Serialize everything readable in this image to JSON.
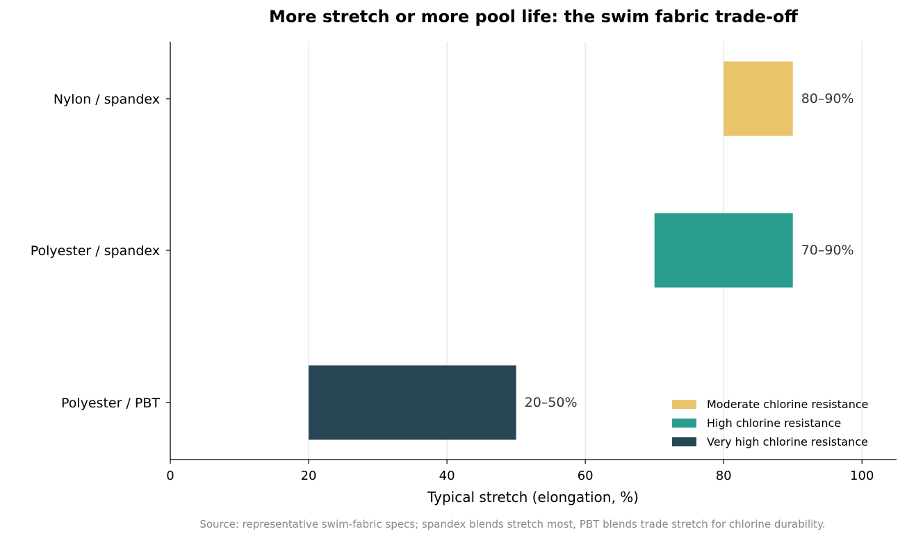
{
  "chart_data": {
    "type": "bar",
    "orientation": "horizontal-range",
    "title": "More stretch or more pool life: the swim fabric trade-off",
    "xlabel": "Typical stretch (elongation, %)",
    "ylabel": "",
    "xlim": [
      0,
      105
    ],
    "xticks": [
      0,
      20,
      40,
      60,
      80,
      100
    ],
    "grid": "vertical",
    "legend_position": "bottom-right",
    "categories": [
      "Nylon / spandex",
      "Polyester / spandex",
      "Polyester / PBT"
    ],
    "series": [
      {
        "category": "Nylon / spandex",
        "start": 80,
        "end": 90,
        "label": "80–90%",
        "color": "#E9C46A",
        "legend": "Moderate chlorine resistance"
      },
      {
        "category": "Polyester / spandex",
        "start": 70,
        "end": 90,
        "label": "70–90%",
        "color": "#2A9D8F",
        "legend": "High chlorine resistance"
      },
      {
        "category": "Polyester / PBT",
        "start": 20,
        "end": 50,
        "label": "20–50%",
        "color": "#264653",
        "legend": "Very high chlorine resistance"
      }
    ],
    "footnote": "Source: representative swim-fabric specs; spandex blends stretch most, PBT blends trade stretch for chlorine durability."
  }
}
